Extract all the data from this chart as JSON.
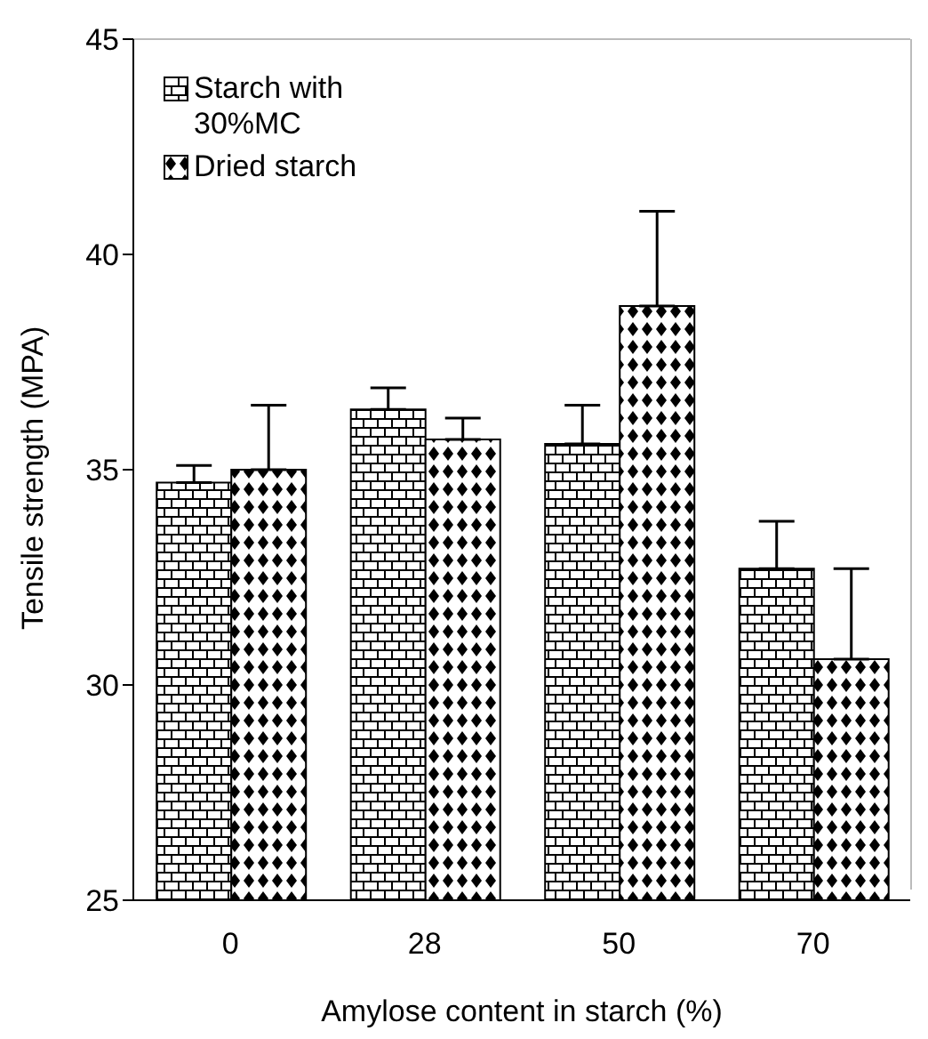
{
  "chart_data": {
    "type": "bar",
    "xlabel": "Amylose content in starch (%)",
    "ylabel": "Tensile strength (MPA)",
    "categories": [
      "0",
      "28",
      "50",
      "70"
    ],
    "series": [
      {
        "name": "Starch with 30%MC",
        "color": "#000000",
        "values": [
          34.7,
          36.4,
          35.6,
          32.7
        ],
        "errors": [
          [
            34.7,
            35.1
          ],
          [
            36.4,
            36.9
          ],
          [
            35.6,
            36.5
          ],
          [
            32.7,
            33.8
          ]
        ]
      },
      {
        "name": "Dried starch",
        "color": "#000000",
        "values": [
          35.0,
          35.7,
          38.8,
          30.6
        ],
        "errors": [
          [
            35.0,
            36.5
          ],
          [
            35.7,
            36.2
          ],
          [
            38.8,
            41.0
          ],
          [
            30.6,
            32.7
          ]
        ]
      }
    ],
    "ylim": [
      25,
      45
    ],
    "yticks": [
      25,
      30,
      35,
      40,
      45
    ],
    "legend": "top left"
  }
}
